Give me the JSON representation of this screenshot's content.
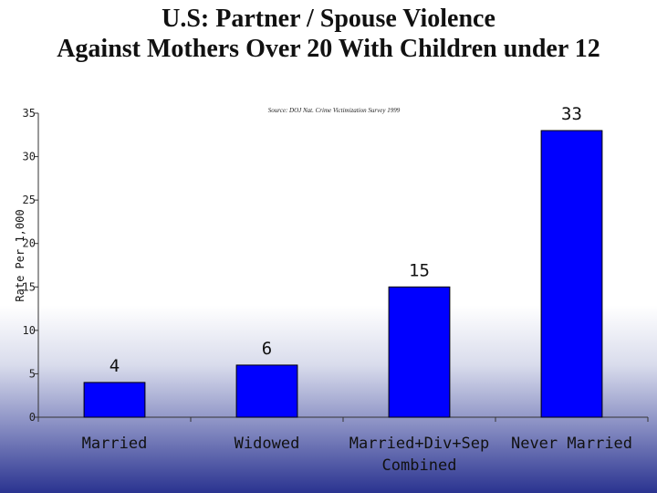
{
  "title_line1": "U.S: Partner / Spouse Violence",
  "title_line2": "Against Mothers Over 20 With Children under 12",
  "chart_data": {
    "type": "bar",
    "title": "U.S: Partner / Spouse Violence Against Mothers Over 20 With Children under 12",
    "source": "Source: DOJ Nat. Crime Victimization Survey 1999",
    "ylabel": "Rate Per 1,000",
    "xlabel": "",
    "ylim": [
      0,
      35
    ],
    "yticks": [
      0,
      5,
      10,
      15,
      20,
      25,
      30,
      35
    ],
    "grid": false,
    "categories": [
      [
        "Married"
      ],
      [
        "Widowed"
      ],
      [
        "Married+Div+Sep",
        "Combined"
      ],
      [
        "Never Married"
      ]
    ],
    "values": [
      4,
      6,
      15,
      33
    ],
    "bar_color": "#0000ff"
  }
}
